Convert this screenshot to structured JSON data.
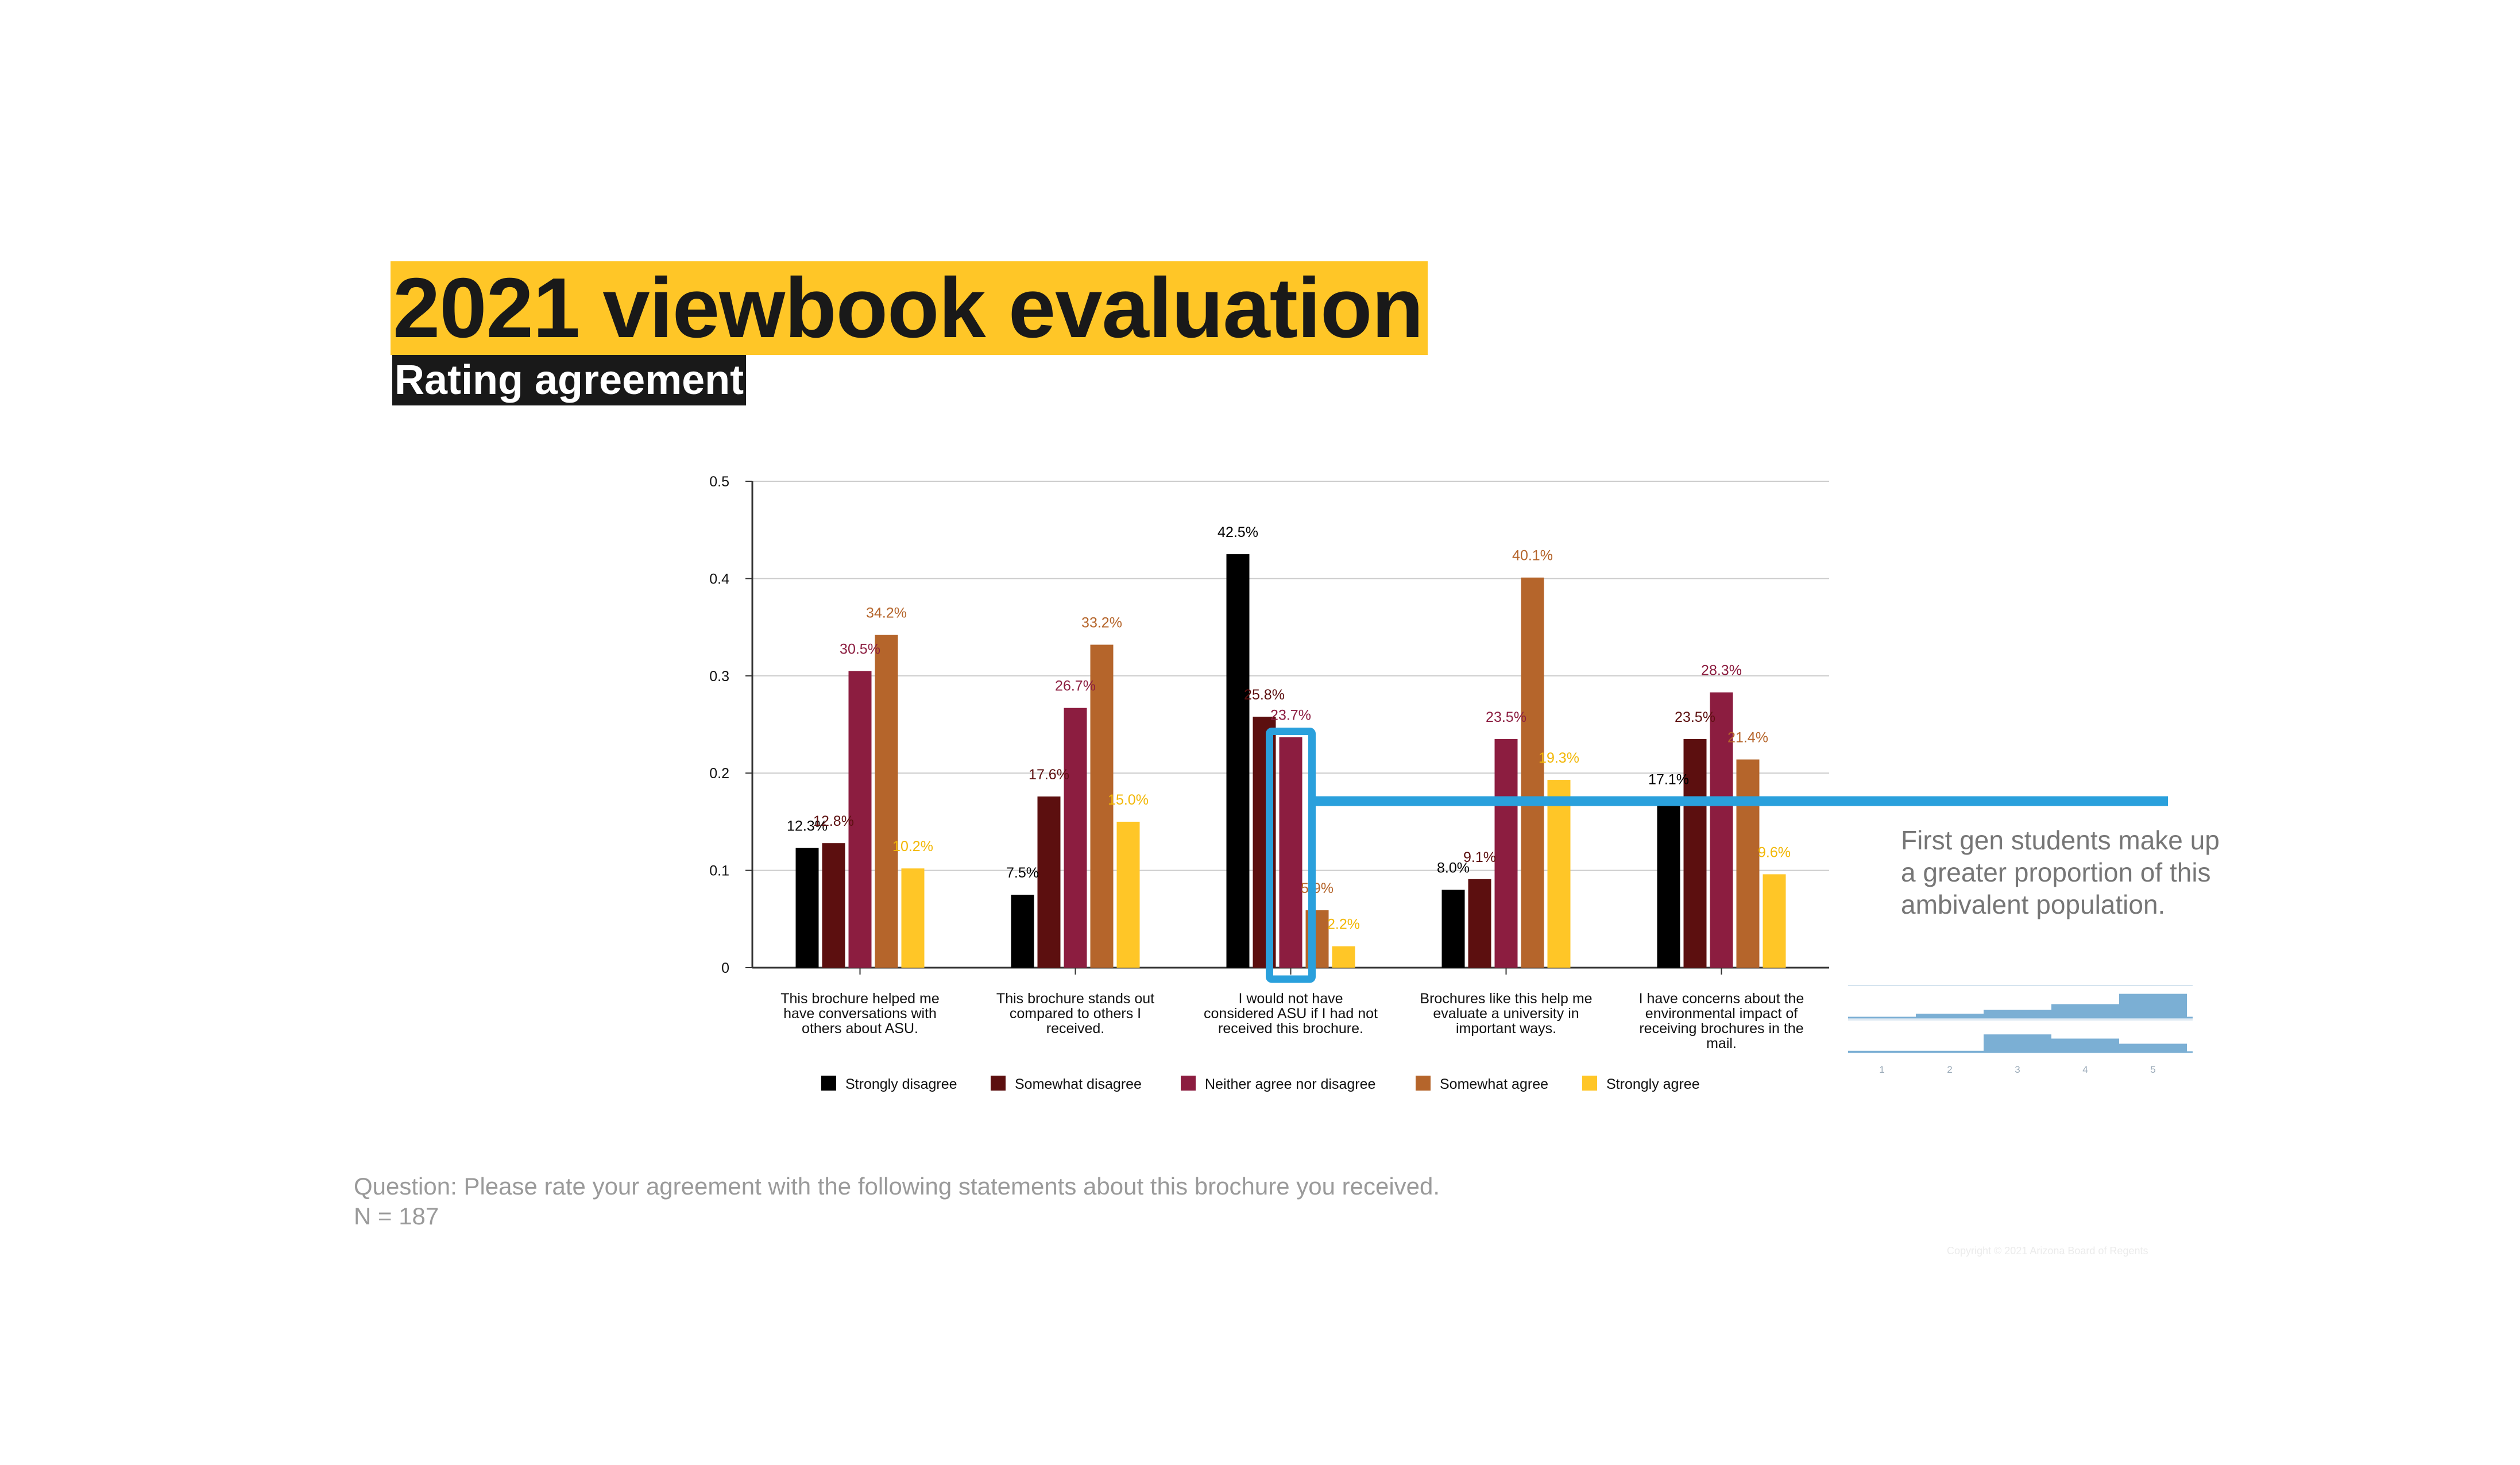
{
  "title": "2021 viewbook evaluation",
  "subtitle": "Rating agreement",
  "callout": "First gen students make up a greater proportion of this ambivalent population.",
  "question": "Question: Please rate your agreement with the following statements about this brochure you received.",
  "n_label": "N = 187",
  "copyright": "Copyright © 2021 Arizona Board of Regents",
  "chart_data": {
    "type": "bar",
    "title": "",
    "xlabel": "",
    "ylabel": "",
    "ylim": [
      0,
      0.5
    ],
    "yticks": [
      "0",
      "0.1",
      "0.2",
      "0.3",
      "0.4",
      "0.5"
    ],
    "categories": [
      [
        "This brochure helped me",
        "have conversations with",
        "others about ASU."
      ],
      [
        "This brochure stands out",
        "compared to others I",
        "received."
      ],
      [
        "I would not have",
        "considered ASU if I had not",
        "received this brochure."
      ],
      [
        "Brochures like this help me",
        "evaluate a university in",
        "important ways."
      ],
      [
        "I have concerns about the",
        "environmental impact of",
        "receiving brochures in the",
        "mail."
      ]
    ],
    "series": [
      {
        "name": "Strongly disagree",
        "color": "#000000",
        "label_color": "#000000",
        "values": [
          0.123,
          0.075,
          0.425,
          0.08,
          0.171
        ],
        "labels": [
          "12.3%",
          "7.5%",
          "42.5%",
          "8.0%",
          "17.1%"
        ]
      },
      {
        "name": "Somewhat disagree",
        "color": "#5C0F0F",
        "label_color": "#5C0F0F",
        "values": [
          0.128,
          0.176,
          0.258,
          0.091,
          0.235
        ],
        "labels": [
          "12.8%",
          "17.6%",
          "25.8%",
          "9.1%",
          "23.5%"
        ]
      },
      {
        "name": "Neither agree nor disagree",
        "color": "#8C1D40",
        "label_color": "#8C1D40",
        "values": [
          0.305,
          0.267,
          0.237,
          0.235,
          0.283
        ],
        "labels": [
          "30.5%",
          "26.7%",
          "23.7%",
          "23.5%",
          "28.3%"
        ]
      },
      {
        "name": "Somewhat agree",
        "color": "#B5652B",
        "label_color": "#B5652B",
        "values": [
          0.342,
          0.332,
          0.059,
          0.401,
          0.214
        ],
        "labels": [
          "34.2%",
          "33.2%",
          "5.9%",
          "40.1%",
          "21.4%"
        ]
      },
      {
        "name": "Strongly agree",
        "color": "#FFC627",
        "label_color": "#F2B705",
        "values": [
          0.102,
          0.15,
          0.022,
          0.193,
          0.096
        ],
        "labels": [
          "10.2%",
          "15.0%",
          "2.2%",
          "19.3%",
          "9.6%"
        ]
      }
    ],
    "legend_position": "bottom",
    "highlight": {
      "category_index": 2,
      "series_index": 2,
      "color": "#2AA0DC"
    },
    "mini_chart": {
      "type": "histogram",
      "ticks": [
        "1",
        "2",
        "3",
        "4",
        "5"
      ],
      "color": "#7BAFD4",
      "rows": [
        {
          "values": [
            0.02,
            0.12,
            0.24,
            0.42,
            0.74
          ]
        },
        {
          "values": [
            0.04,
            0.04,
            0.55,
            0.42,
            0.26
          ]
        }
      ]
    }
  }
}
